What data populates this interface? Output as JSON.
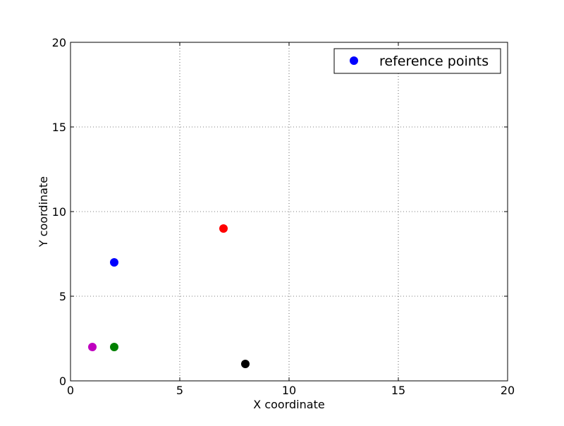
{
  "chart_data": {
    "type": "scatter",
    "title": "",
    "xlabel": "X coordinate",
    "ylabel": "Y coordinate",
    "xlim": [
      0,
      20
    ],
    "ylim": [
      0,
      20
    ],
    "xticks": [
      0,
      5,
      10,
      15,
      20
    ],
    "yticks": [
      0,
      5,
      10,
      15,
      20
    ],
    "grid": true,
    "legend": {
      "placement": "top-right",
      "entries": [
        {
          "label": "reference points",
          "color": "#0000ff"
        }
      ]
    },
    "series": [
      {
        "name": "reference points",
        "points": [
          {
            "x": 2,
            "y": 7,
            "color": "#0000ff"
          },
          {
            "x": 7,
            "y": 9,
            "color": "#ff0000"
          },
          {
            "x": 1,
            "y": 2,
            "color": "#bf00bf"
          },
          {
            "x": 2,
            "y": 2,
            "color": "#008000"
          },
          {
            "x": 8,
            "y": 1,
            "color": "#000000"
          }
        ]
      }
    ]
  }
}
